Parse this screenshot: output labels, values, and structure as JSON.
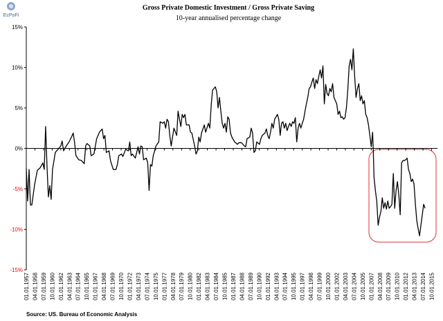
{
  "logo": "EcPoFi",
  "chart_data": {
    "type": "line",
    "title": "Gross Private Domestic Investment / Gross Private Saving",
    "subtitle": "10-year annualised percentage change",
    "source": "Source: US. Bureau of Economic Analysis",
    "color": "#000000",
    "negative_tick_color": "#ff0000",
    "grid": false,
    "xlim": [
      1957,
      2016.6
    ],
    "ylim": [
      -15,
      15
    ],
    "yticks": [
      {
        "value": -15,
        "label": "-15%"
      },
      {
        "value": -10,
        "label": "-10%"
      },
      {
        "value": -5,
        "label": "-5%"
      },
      {
        "value": 0,
        "label": "0%"
      },
      {
        "value": 5,
        "label": "5%"
      },
      {
        "value": 10,
        "label": "10%"
      },
      {
        "value": 15,
        "label": "15%"
      }
    ],
    "xticks": [
      {
        "value": 1957,
        "label": "01.01.1957"
      },
      {
        "value": 1958.25,
        "label": "04.01.1958"
      },
      {
        "value": 1959.5,
        "label": "07.01.1959"
      },
      {
        "value": 1960.75,
        "label": "10.01.1960"
      },
      {
        "value": 1962,
        "label": "01.01.1962"
      },
      {
        "value": 1963.25,
        "label": "04.01.1963"
      },
      {
        "value": 1964.5,
        "label": "07.01.1964"
      },
      {
        "value": 1965.75,
        "label": "10.01.1965"
      },
      {
        "value": 1967,
        "label": "01.01.1967"
      },
      {
        "value": 1968.25,
        "label": "04.01.1968"
      },
      {
        "value": 1969.5,
        "label": "07.01.1969"
      },
      {
        "value": 1970.75,
        "label": "10.01.1970"
      },
      {
        "value": 1972,
        "label": "01.01.1972"
      },
      {
        "value": 1973.25,
        "label": "04.01.1973"
      },
      {
        "value": 1974.5,
        "label": "07.01.1974"
      },
      {
        "value": 1975.75,
        "label": "10.01.1975"
      },
      {
        "value": 1977,
        "label": "01.01.1977"
      },
      {
        "value": 1978.25,
        "label": "04.01.1978"
      },
      {
        "value": 1979.5,
        "label": "07.01.1979"
      },
      {
        "value": 1980.75,
        "label": "10.01.1980"
      },
      {
        "value": 1982,
        "label": "01.01.1982"
      },
      {
        "value": 1983.25,
        "label": "04.01.1983"
      },
      {
        "value": 1984.5,
        "label": "07.01.1984"
      },
      {
        "value": 1985.75,
        "label": "10.01.1985"
      },
      {
        "value": 1987,
        "label": "01.01.1987"
      },
      {
        "value": 1988.25,
        "label": "04.01.1988"
      },
      {
        "value": 1989.5,
        "label": "07.01.1989"
      },
      {
        "value": 1990.75,
        "label": "10.01.1990"
      },
      {
        "value": 1992,
        "label": "01.01.1992"
      },
      {
        "value": 1993.25,
        "label": "04.01.1993"
      },
      {
        "value": 1994.5,
        "label": "07.01.1994"
      },
      {
        "value": 1995.75,
        "label": "10.01.1995"
      },
      {
        "value": 1997,
        "label": "01.01.1997"
      },
      {
        "value": 1998.25,
        "label": "04.01.1998"
      },
      {
        "value": 1999.5,
        "label": "07.01.1999"
      },
      {
        "value": 2000.75,
        "label": "10.01.2000"
      },
      {
        "value": 2002,
        "label": "01.01.2002"
      },
      {
        "value": 2003.25,
        "label": "04.01.2003"
      },
      {
        "value": 2004.5,
        "label": "07.01.2004"
      },
      {
        "value": 2005.75,
        "label": "10.01.2005"
      },
      {
        "value": 2007,
        "label": "01.01.2007"
      },
      {
        "value": 2008.25,
        "label": "04.01.2008"
      },
      {
        "value": 2009.5,
        "label": "07.01.2009"
      },
      {
        "value": 2010.75,
        "label": "10.01.2010"
      },
      {
        "value": 2012,
        "label": "01.01.2012"
      },
      {
        "value": 2013.25,
        "label": "04.01.2013"
      },
      {
        "value": 2014.5,
        "label": "07.01.2014"
      },
      {
        "value": 2015.75,
        "label": "10.01.2015"
      }
    ],
    "x": [
      1957.0,
      1957.2,
      1957.4,
      1957.6,
      1957.8,
      1958.2,
      1958.6,
      1959.0,
      1959.4,
      1959.6,
      1959.8,
      1960.0,
      1960.2,
      1960.4,
      1960.6,
      1960.8,
      1961.2,
      1961.6,
      1962.0,
      1962.2,
      1962.4,
      1962.8,
      1963.2,
      1963.6,
      1963.8,
      1964.0,
      1964.2,
      1964.6,
      1965.0,
      1965.4,
      1965.6,
      1965.8,
      1966.2,
      1966.4,
      1966.8,
      1967.2,
      1967.6,
      1968.0,
      1968.2,
      1968.4,
      1968.6,
      1969.0,
      1969.2,
      1969.6,
      1970.0,
      1970.2,
      1970.4,
      1970.8,
      1971.0,
      1971.4,
      1971.8,
      1972.0,
      1972.2,
      1972.4,
      1972.8,
      1973.2,
      1973.4,
      1973.6,
      1973.8,
      1974.0,
      1974.4,
      1974.6,
      1974.8,
      1975.0,
      1975.2,
      1975.4,
      1975.8,
      1976.2,
      1976.4,
      1976.8,
      1977.0,
      1977.2,
      1977.4,
      1977.6,
      1977.8,
      1978.0,
      1978.2,
      1978.4,
      1978.8,
      1979.0,
      1979.2,
      1979.4,
      1979.6,
      1979.8,
      1980.0,
      1980.2,
      1980.6,
      1980.8,
      1981.0,
      1981.4,
      1981.6,
      1981.8,
      1982.0,
      1982.2,
      1982.4,
      1982.8,
      1983.0,
      1983.4,
      1983.6,
      1983.8,
      1984.0,
      1984.4,
      1984.6,
      1984.8,
      1985.0,
      1985.2,
      1985.4,
      1985.6,
      1985.8,
      1986.0,
      1986.2,
      1986.4,
      1986.6,
      1986.8,
      1987.2,
      1987.6,
      1987.8,
      1988.2,
      1988.6,
      1988.8,
      1989.0,
      1989.4,
      1989.6,
      1989.8,
      1990.0,
      1990.2,
      1990.4,
      1990.8,
      1991.0,
      1991.2,
      1991.6,
      1991.8,
      1992.0,
      1992.2,
      1992.4,
      1992.6,
      1992.8,
      1993.0,
      1993.2,
      1993.4,
      1993.6,
      1993.8,
      1994.0,
      1994.2,
      1994.4,
      1994.6,
      1994.8,
      1995.0,
      1995.2,
      1995.4,
      1995.6,
      1995.8,
      1996.0,
      1996.2,
      1996.4,
      1996.6,
      1996.8,
      1997.0,
      1997.2,
      1997.4,
      1997.6,
      1997.8,
      1998.0,
      1998.2,
      1998.4,
      1998.6,
      1998.8,
      1999.0,
      1999.2,
      1999.4,
      1999.6,
      1999.8,
      2000.0,
      2000.2,
      2000.4,
      2000.6,
      2000.8,
      2001.0,
      2001.2,
      2001.4,
      2001.6,
      2001.8,
      2002.0,
      2002.2,
      2002.4,
      2002.6,
      2002.8,
      2003.0,
      2003.2,
      2003.4,
      2003.6,
      2003.8,
      2004.0,
      2004.2,
      2004.4,
      2004.6,
      2004.8,
      2005.0,
      2005.2,
      2005.4,
      2005.6,
      2005.8,
      2006.0,
      2006.2,
      2006.4,
      2006.6,
      2006.8,
      2007.0,
      2007.2,
      2007.3,
      2007.4,
      2007.6,
      2007.8,
      2008.0,
      2008.2,
      2008.4,
      2008.6,
      2008.8,
      2009.0,
      2009.2,
      2009.4,
      2009.6,
      2009.8,
      2010.0,
      2010.2,
      2010.4,
      2010.6,
      2010.8,
      2011.0,
      2011.2,
      2011.4,
      2011.6,
      2011.8,
      2012.0,
      2012.2,
      2012.4,
      2012.6,
      2012.8,
      2013.0,
      2013.2,
      2013.4,
      2013.6,
      2013.8,
      2014.0,
      2014.2,
      2014.4,
      2014.6,
      2014.8
    ],
    "values": [
      -2.5,
      -6.5,
      -2.6,
      -7.0,
      -7.0,
      -4.5,
      -2.7,
      -2.4,
      -1.8,
      -2.6,
      2.7,
      -2.2,
      -6.0,
      -4.6,
      -6.3,
      -2.6,
      -0.5,
      -0.1,
      0.3,
      0.9,
      -0.3,
      0.3,
      0.8,
      1.5,
      1.9,
      0.7,
      -0.9,
      -1.4,
      -1.5,
      -1.9,
      0.3,
      0.6,
      0.3,
      -0.9,
      -0.7,
      1.2,
      2.0,
      2.4,
      1.2,
      1.6,
      -0.5,
      -0.3,
      -1.5,
      -2.6,
      -2.6,
      -2.0,
      -0.9,
      -0.7,
      -1.0,
      -0.1,
      -0.3,
      0.8,
      -0.9,
      -0.7,
      -1.2,
      0.2,
      -0.7,
      0.3,
      0.2,
      -1.4,
      -1.2,
      -1.8,
      -5.2,
      -2.0,
      -2.2,
      -0.9,
      0.3,
      0.8,
      3.3,
      3.1,
      3.3,
      2.5,
      3.6,
      3.3,
      1.6,
      0.3,
      1.4,
      2.5,
      1.6,
      4.6,
      3.6,
      2.7,
      4.2,
      3.8,
      4.2,
      2.9,
      2.9,
      2.0,
      1.9,
      0.3,
      -0.7,
      -0.3,
      1.4,
      0.8,
      1.9,
      2.9,
      2.0,
      3.1,
      2.5,
      5.3,
      7.2,
      7.6,
      7.0,
      5.0,
      6.3,
      4.6,
      3.1,
      2.5,
      3.1,
      2.0,
      3.9,
      3.6,
      1.9,
      1.4,
      0.8,
      0.5,
      0.7,
      0.7,
      0.3,
      0.2,
      1.2,
      1.4,
      2.5,
      1.9,
      -0.5,
      -0.3,
      0.8,
      0.5,
      1.2,
      1.6,
      1.9,
      2.4,
      1.6,
      1.2,
      2.0,
      3.1,
      2.5,
      3.6,
      3.9,
      4.2,
      3.6,
      1.6,
      3.1,
      3.3,
      2.5,
      3.1,
      2.2,
      2.7,
      3.1,
      2.7,
      3.3,
      3.1,
      3.8,
      0.8,
      2.5,
      3.1,
      2.5,
      3.1,
      3.6,
      4.6,
      5.5,
      6.3,
      7.4,
      7.6,
      8.2,
      8.7,
      7.4,
      8.5,
      8.0,
      8.9,
      9.7,
      8.7,
      10.2,
      5.5,
      7.9,
      6.8,
      6.5,
      7.4,
      7.0,
      8.0,
      6.3,
      5.9,
      5.5,
      4.2,
      4.6,
      3.8,
      3.9,
      3.6,
      3.8,
      5.0,
      7.2,
      10.2,
      11.0,
      9.7,
      12.3,
      8.9,
      6.3,
      7.4,
      8.0,
      5.9,
      6.5,
      5.5,
      5.9,
      4.2,
      3.8,
      2.9,
      1.6,
      0.2,
      2.0,
      -0.3,
      -3.5,
      -5.2,
      -6.5,
      -9.5,
      -8.5,
      -7.8,
      -6.1,
      -7.4,
      -6.7,
      -7.5,
      -6.5,
      -7.4,
      -7.2,
      -6.9,
      -3.1,
      -7.4,
      -5.2,
      -4.1,
      -5.8,
      -8.2,
      -1.8,
      -1.5,
      -1.5,
      -1.4,
      -1.2,
      -2.6,
      -3.1,
      -4.1,
      -3.8,
      -4.4,
      -6.9,
      -8.9,
      -9.9,
      -10.8,
      -9.5,
      -8.2,
      -6.9,
      -7.4
    ]
  }
}
